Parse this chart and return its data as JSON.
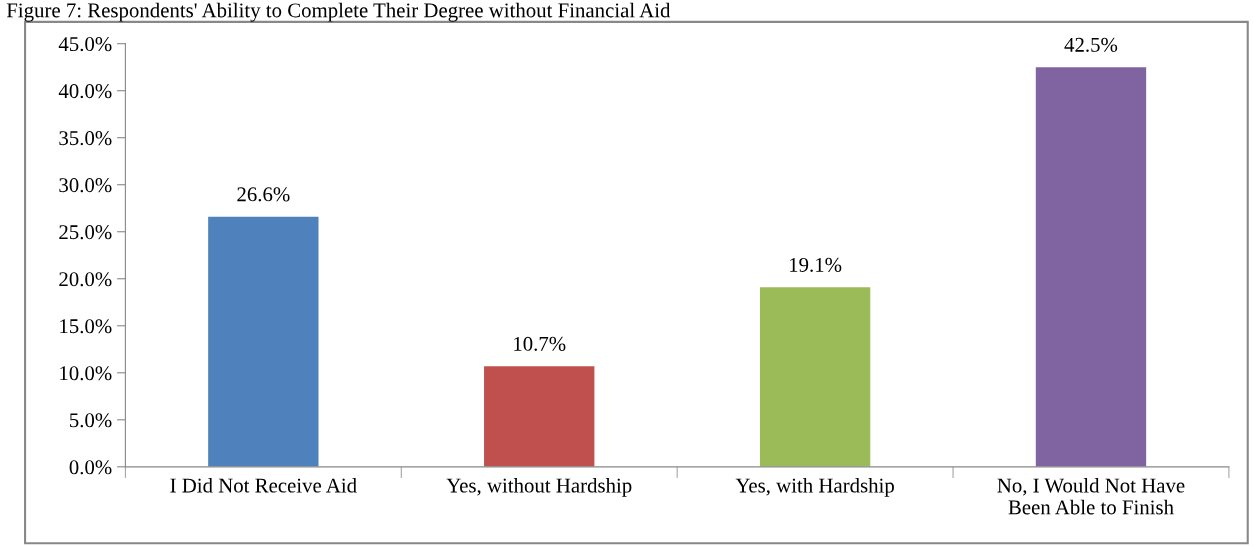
{
  "chart_data": {
    "type": "bar",
    "title": "Figure 7: Respondents' Ability to Complete Their Degree without Financial Aid",
    "categories": [
      "I Did Not Receive Aid",
      "Yes, without Hardship",
      "Yes, with Hardship",
      "No, I Would Not Have\nBeen Able to Finish"
    ],
    "values": [
      26.6,
      10.7,
      19.1,
      42.5
    ],
    "colors": [
      "#4f81bd",
      "#c0504d",
      "#9bbb59",
      "#8064a2"
    ],
    "value_labels": [
      "26.6%",
      "10.7%",
      "19.1%",
      "42.5%"
    ],
    "ylim": [
      0,
      45
    ],
    "yticks": [
      {
        "value": 0,
        "label": "0.0%"
      },
      {
        "value": 5,
        "label": "5.0%"
      },
      {
        "value": 10,
        "label": "10.0%"
      },
      {
        "value": 15,
        "label": "15.0%"
      },
      {
        "value": 20,
        "label": "20.0%"
      },
      {
        "value": 25,
        "label": "25.0%"
      },
      {
        "value": 30,
        "label": "30.0%"
      },
      {
        "value": 35,
        "label": "35.0%"
      },
      {
        "value": 40,
        "label": "40.0%"
      },
      {
        "value": 45,
        "label": "45.0%"
      }
    ],
    "grid": false,
    "legend": false
  }
}
